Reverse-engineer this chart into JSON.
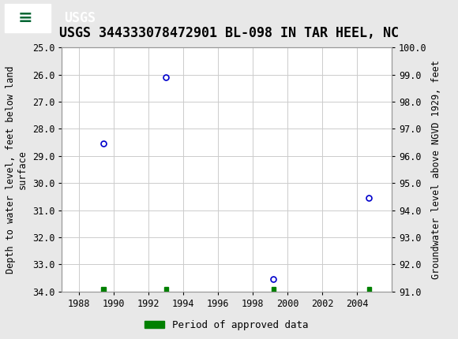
{
  "title": "USGS 344333078472901 BL-098 IN TAR HEEL, NC",
  "ylabel_left": "Depth to water level, feet below land\nsurface",
  "ylabel_right": "Groundwater level above NGVD 1929, feet",
  "xlim": [
    1987,
    2006
  ],
  "ylim_left_top": 25.0,
  "ylim_left_bottom": 34.0,
  "ylim_right_top": 100.0,
  "ylim_right_bottom": 91.0,
  "xticks": [
    1988,
    1990,
    1992,
    1994,
    1996,
    1998,
    2000,
    2002,
    2004
  ],
  "yticks_left": [
    25.0,
    26.0,
    27.0,
    28.0,
    29.0,
    30.0,
    31.0,
    32.0,
    33.0,
    34.0
  ],
  "yticks_right": [
    100.0,
    99.0,
    98.0,
    97.0,
    96.0,
    95.0,
    94.0,
    93.0,
    92.0,
    91.0
  ],
  "data_points": [
    {
      "year": 1989.4,
      "depth": 28.55
    },
    {
      "year": 1993.0,
      "depth": 26.1
    },
    {
      "year": 1999.2,
      "depth": 33.55
    },
    {
      "year": 2004.7,
      "depth": 30.55
    }
  ],
  "approved_markers": [
    {
      "x": 1989.4
    },
    {
      "x": 1993.0
    },
    {
      "x": 1999.2
    },
    {
      "x": 2004.7
    }
  ],
  "point_color": "#0000cc",
  "approved_color": "#008000",
  "grid_color": "#cccccc",
  "bg_color": "#e8e8e8",
  "plot_bg_color": "#ffffff",
  "header_bg": "#006633",
  "title_fontsize": 12,
  "label_fontsize": 8.5,
  "tick_fontsize": 8.5,
  "legend_fontsize": 9
}
